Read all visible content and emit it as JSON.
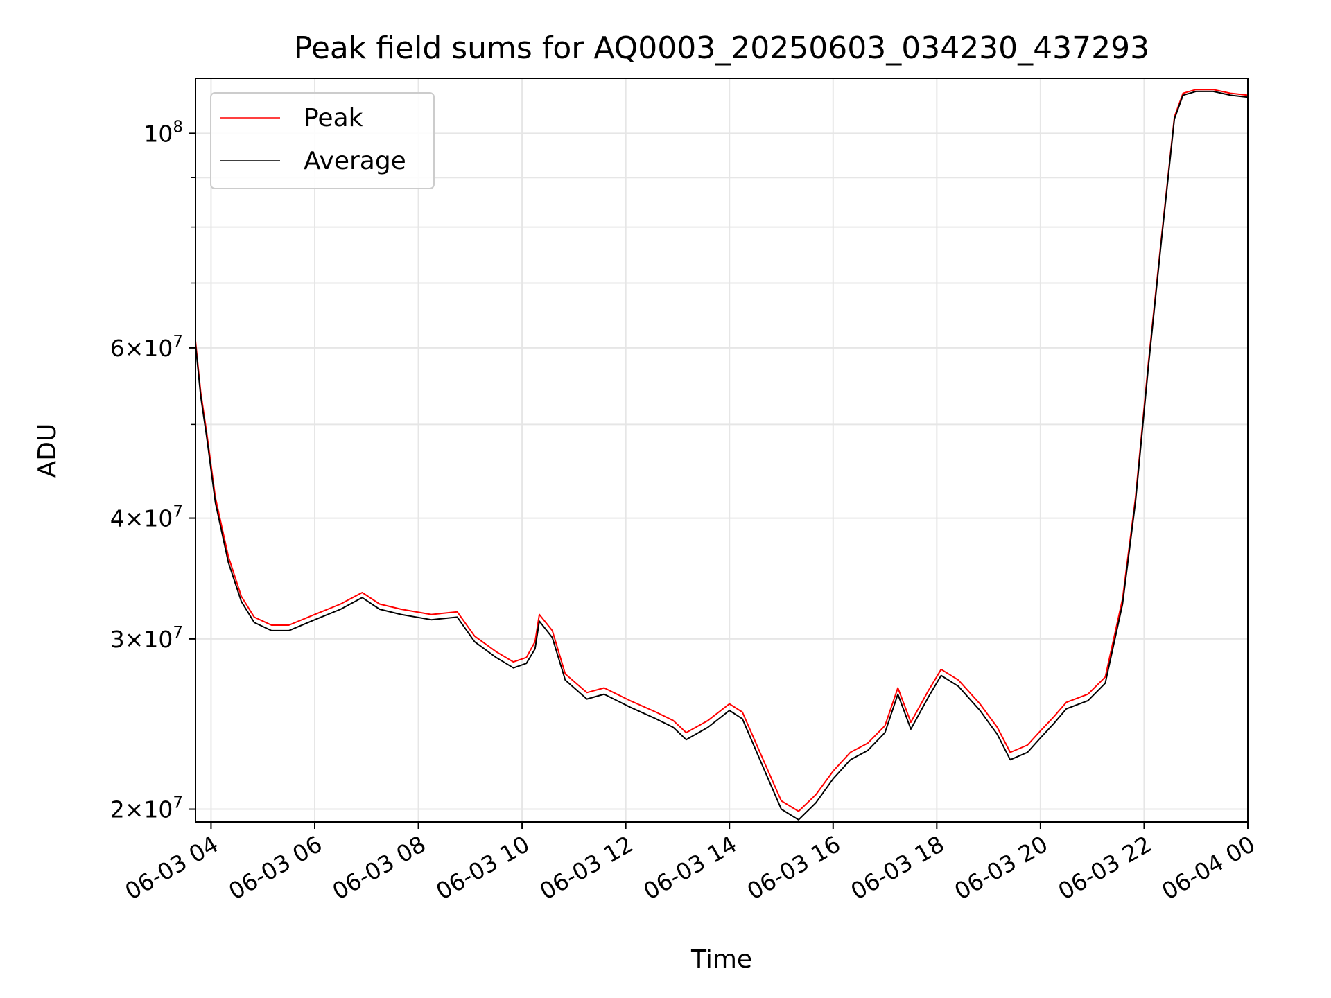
{
  "chart_data": {
    "type": "line",
    "title": "Peak field sums for AQ0003_20250603_034230_437293",
    "xlabel": "Time",
    "ylabel": "ADU",
    "yscale": "log",
    "grid": true,
    "legend_position": "upper-left",
    "xlim": [
      "2025-06-03T03:42",
      "2025-06-04T00:00"
    ],
    "ylim": [
      19400000,
      114000000
    ],
    "x_ticks": [
      {
        "value": "2025-06-03T04:00",
        "label": "06-03 04"
      },
      {
        "value": "2025-06-03T06:00",
        "label": "06-03 06"
      },
      {
        "value": "2025-06-03T08:00",
        "label": "06-03 08"
      },
      {
        "value": "2025-06-03T10:00",
        "label": "06-03 10"
      },
      {
        "value": "2025-06-03T12:00",
        "label": "06-03 12"
      },
      {
        "value": "2025-06-03T14:00",
        "label": "06-03 14"
      },
      {
        "value": "2025-06-03T16:00",
        "label": "06-03 16"
      },
      {
        "value": "2025-06-03T18:00",
        "label": "06-03 18"
      },
      {
        "value": "2025-06-03T20:00",
        "label": "06-03 20"
      },
      {
        "value": "2025-06-03T22:00",
        "label": "06-03 22"
      },
      {
        "value": "2025-06-04T00:00",
        "label": "06-04 00"
      }
    ],
    "y_ticks_major": [
      {
        "value": 100000000,
        "mantissa": "",
        "base": "10",
        "exp": "8"
      },
      {
        "value": 60000000,
        "mantissa": "6",
        "base": "10",
        "exp": "7"
      },
      {
        "value": 40000000,
        "mantissa": "4",
        "base": "10",
        "exp": "7"
      },
      {
        "value": 30000000,
        "mantissa": "3",
        "base": "10",
        "exp": "7"
      },
      {
        "value": 20000000,
        "mantissa": "2",
        "base": "10",
        "exp": "7"
      }
    ],
    "y_ticks_minor": [
      50000000,
      70000000,
      80000000,
      90000000
    ],
    "series": [
      {
        "name": "Peak",
        "color": "#ff0000",
        "x": [
          "2025-06-03T03:42",
          "2025-06-03T03:48",
          "2025-06-03T03:55",
          "2025-06-03T04:05",
          "2025-06-03T04:20",
          "2025-06-03T04:35",
          "2025-06-03T04:50",
          "2025-06-03T05:10",
          "2025-06-03T05:30",
          "2025-06-03T06:00",
          "2025-06-03T06:30",
          "2025-06-03T06:55",
          "2025-06-03T07:15",
          "2025-06-03T07:40",
          "2025-06-03T08:15",
          "2025-06-03T08:45",
          "2025-06-03T09:05",
          "2025-06-03T09:30",
          "2025-06-03T09:50",
          "2025-06-03T10:05",
          "2025-06-03T10:15",
          "2025-06-03T10:20",
          "2025-06-03T10:35",
          "2025-06-03T10:50",
          "2025-06-03T11:15",
          "2025-06-03T11:35",
          "2025-06-03T12:05",
          "2025-06-03T12:35",
          "2025-06-03T12:55",
          "2025-06-03T13:10",
          "2025-06-03T13:35",
          "2025-06-03T14:00",
          "2025-06-03T14:15",
          "2025-06-03T14:40",
          "2025-06-03T15:00",
          "2025-06-03T15:20",
          "2025-06-03T15:40",
          "2025-06-03T16:00",
          "2025-06-03T16:20",
          "2025-06-03T16:40",
          "2025-06-03T17:00",
          "2025-06-03T17:15",
          "2025-06-03T17:30",
          "2025-06-03T17:50",
          "2025-06-03T18:05",
          "2025-06-03T18:25",
          "2025-06-03T18:50",
          "2025-06-03T19:10",
          "2025-06-03T19:25",
          "2025-06-03T19:45",
          "2025-06-03T20:00",
          "2025-06-03T20:15",
          "2025-06-03T20:30",
          "2025-06-03T20:55",
          "2025-06-03T21:15",
          "2025-06-03T21:35",
          "2025-06-03T21:50",
          "2025-06-03T22:05",
          "2025-06-03T22:20",
          "2025-06-03T22:35",
          "2025-06-03T22:45",
          "2025-06-03T23:00",
          "2025-06-03T23:20",
          "2025-06-03T23:40",
          "2025-06-04T00:00"
        ],
        "values": [
          61000000,
          54000000,
          49000000,
          42000000,
          36500000,
          33200000,
          31600000,
          31000000,
          31000000,
          31800000,
          32600000,
          33500000,
          32600000,
          32200000,
          31800000,
          32000000,
          30200000,
          29100000,
          28400000,
          28700000,
          29800000,
          31800000,
          30600000,
          27600000,
          26400000,
          26700000,
          25900000,
          25200000,
          24700000,
          24000000,
          24700000,
          25700000,
          25200000,
          22400000,
          20400000,
          19900000,
          20700000,
          21900000,
          22900000,
          23400000,
          24400000,
          26700000,
          24600000,
          26500000,
          27900000,
          27200000,
          25700000,
          24300000,
          22900000,
          23300000,
          24100000,
          24900000,
          25800000,
          26300000,
          27400000,
          33000000,
          42000000,
          58000000,
          78000000,
          104000000,
          110000000,
          111000000,
          111000000,
          110000000,
          109500000
        ]
      },
      {
        "name": "Average",
        "color": "#000000",
        "x": [
          "2025-06-03T03:42",
          "2025-06-03T03:48",
          "2025-06-03T03:55",
          "2025-06-03T04:05",
          "2025-06-03T04:20",
          "2025-06-03T04:35",
          "2025-06-03T04:50",
          "2025-06-03T05:10",
          "2025-06-03T05:30",
          "2025-06-03T06:00",
          "2025-06-03T06:30",
          "2025-06-03T06:55",
          "2025-06-03T07:15",
          "2025-06-03T07:40",
          "2025-06-03T08:15",
          "2025-06-03T08:45",
          "2025-06-03T09:05",
          "2025-06-03T09:30",
          "2025-06-03T09:50",
          "2025-06-03T10:05",
          "2025-06-03T10:15",
          "2025-06-03T10:20",
          "2025-06-03T10:35",
          "2025-06-03T10:50",
          "2025-06-03T11:15",
          "2025-06-03T11:35",
          "2025-06-03T12:05",
          "2025-06-03T12:35",
          "2025-06-03T12:55",
          "2025-06-03T13:10",
          "2025-06-03T13:35",
          "2025-06-03T14:00",
          "2025-06-03T14:15",
          "2025-06-03T14:40",
          "2025-06-03T15:00",
          "2025-06-03T15:20",
          "2025-06-03T15:40",
          "2025-06-03T16:00",
          "2025-06-03T16:20",
          "2025-06-03T16:40",
          "2025-06-03T17:00",
          "2025-06-03T17:15",
          "2025-06-03T17:30",
          "2025-06-03T17:50",
          "2025-06-03T18:05",
          "2025-06-03T18:25",
          "2025-06-03T18:50",
          "2025-06-03T19:10",
          "2025-06-03T19:25",
          "2025-06-03T19:45",
          "2025-06-03T20:00",
          "2025-06-03T20:15",
          "2025-06-03T20:30",
          "2025-06-03T20:55",
          "2025-06-03T21:15",
          "2025-06-03T21:35",
          "2025-06-03T21:50",
          "2025-06-03T22:05",
          "2025-06-03T22:20",
          "2025-06-03T22:35",
          "2025-06-03T22:45",
          "2025-06-03T23:00",
          "2025-06-03T23:20",
          "2025-06-03T23:40",
          "2025-06-04T00:00"
        ],
        "values": [
          60500000,
          53500000,
          48500000,
          41500000,
          36000000,
          32800000,
          31200000,
          30600000,
          30600000,
          31400000,
          32200000,
          33100000,
          32200000,
          31800000,
          31400000,
          31600000,
          29800000,
          28700000,
          28000000,
          28300000,
          29300000,
          31300000,
          30100000,
          27200000,
          26000000,
          26300000,
          25500000,
          24800000,
          24300000,
          23600000,
          24300000,
          25300000,
          24800000,
          22000000,
          20000000,
          19500000,
          20300000,
          21500000,
          22500000,
          23000000,
          24000000,
          26300000,
          24200000,
          26100000,
          27500000,
          26800000,
          25300000,
          23900000,
          22500000,
          22900000,
          23700000,
          24500000,
          25400000,
          25900000,
          27000000,
          32600000,
          41600000,
          57500000,
          77500000,
          103500000,
          109500000,
          110500000,
          110500000,
          109500000,
          109000000
        ]
      }
    ]
  }
}
